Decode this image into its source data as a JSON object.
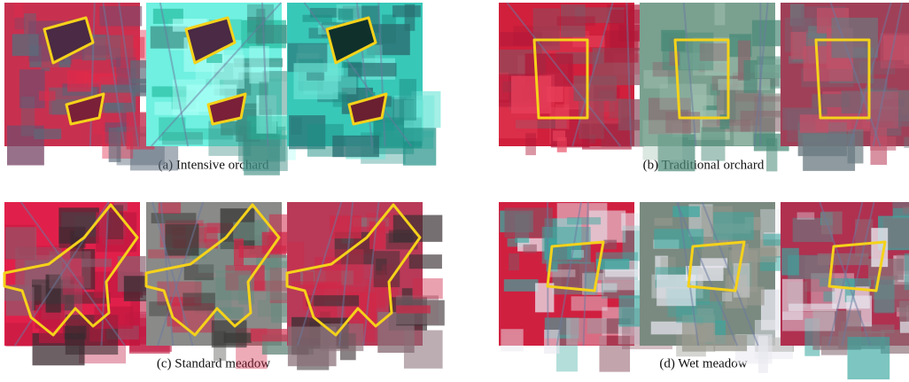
{
  "figure": {
    "panels": [
      {
        "caption": "(a) Intensive orchard"
      },
      {
        "caption": "(b) Traditional orchard"
      },
      {
        "caption": "(c) Standard meadow"
      },
      {
        "caption": "(d) Wet meadow"
      }
    ]
  }
}
